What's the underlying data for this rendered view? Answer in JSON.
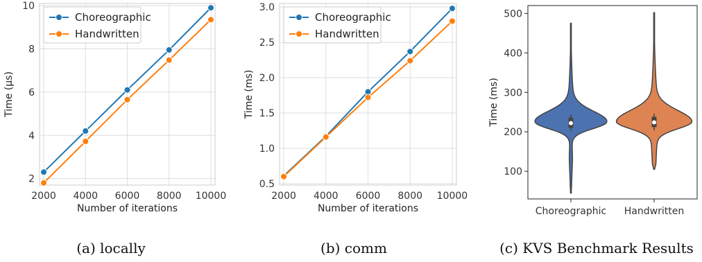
{
  "chart_data": [
    {
      "type": "line",
      "xlabel": "Number of iterations",
      "ylabel": "Time (μs)",
      "caption": "(a) locally",
      "xlim": [
        1800,
        10200
      ],
      "ylim": [
        1.7,
        10.1
      ],
      "xticks": [
        2000,
        4000,
        6000,
        8000,
        10000
      ],
      "yticks": [
        2,
        4,
        6,
        8,
        10
      ],
      "grid": true,
      "legend": "top-left",
      "x": [
        2000,
        4000,
        6000,
        8000,
        10000
      ],
      "series": [
        {
          "name": "Choreographic",
          "color": "#1f77b4",
          "values": [
            2.3,
            4.2,
            6.1,
            7.95,
            9.9
          ]
        },
        {
          "name": "Handwritten",
          "color": "#ff7f0e",
          "values": [
            1.8,
            3.72,
            5.65,
            7.48,
            9.35
          ]
        }
      ]
    },
    {
      "type": "line",
      "xlabel": "Number of iterations",
      "ylabel": "Time (ms)",
      "caption": "(b) comm",
      "xlim": [
        1800,
        10200
      ],
      "ylim": [
        0.48,
        3.05
      ],
      "xticks": [
        2000,
        4000,
        6000,
        8000,
        10000
      ],
      "yticks": [
        0.5,
        1.0,
        1.5,
        2.0,
        2.5,
        3.0
      ],
      "ytick_labels": [
        "0.5",
        "1.0",
        "1.5",
        "2.0",
        "2.5",
        "3.0"
      ],
      "grid": true,
      "legend": "top-left",
      "x": [
        2000,
        4000,
        6000,
        8000,
        10000
      ],
      "series": [
        {
          "name": "Choreographic",
          "color": "#1f77b4",
          "values": [
            0.61,
            1.17,
            1.8,
            2.37,
            2.98
          ]
        },
        {
          "name": "Handwritten",
          "color": "#ff7f0e",
          "values": [
            0.6,
            1.16,
            1.72,
            2.24,
            2.8
          ]
        }
      ]
    },
    {
      "type": "violin",
      "ylabel": "Time (ms)",
      "caption": "(c) KVS Benchmark Results",
      "ylim": [
        30,
        520
      ],
      "yticks": [
        100,
        200,
        300,
        400,
        500
      ],
      "grid": false,
      "categories": [
        "Choreographic",
        "Handwritten"
      ],
      "series": [
        {
          "name": "Choreographic",
          "color": "#4c72b0",
          "min": 45,
          "max": 475,
          "median": 222,
          "q1": 210,
          "q3": 236
        },
        {
          "name": "Handwritten",
          "color": "#dd8452",
          "min": 105,
          "max": 502,
          "median": 224,
          "q1": 212,
          "q3": 238
        }
      ]
    }
  ]
}
